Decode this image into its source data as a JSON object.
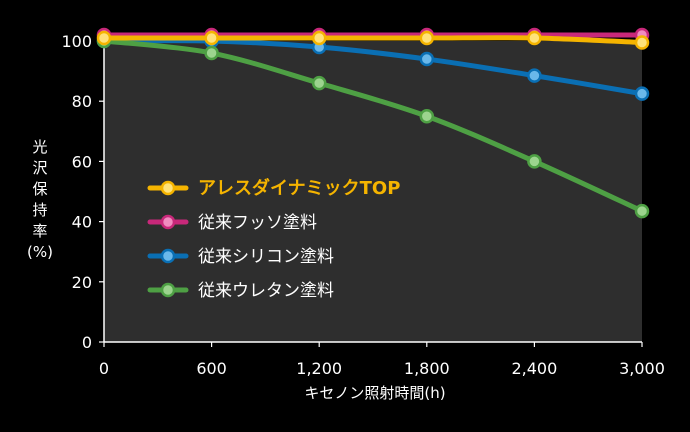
{
  "chart_data": {
    "type": "line",
    "xlabel": "キセノン照射時間(h)",
    "ylabel": [
      "光",
      "沢",
      "保",
      "持",
      "率",
      "(%)"
    ],
    "x": [
      0,
      600,
      1200,
      1800,
      2400,
      3000
    ],
    "x_tick_labels": [
      "0",
      "600",
      "1,200",
      "1,800",
      "2,400",
      "3,000"
    ],
    "xlim": [
      0,
      3000
    ],
    "ylim": [
      0,
      100
    ],
    "y_ticks": [
      0,
      20,
      40,
      60,
      80,
      100
    ],
    "y_tick_labels": [
      "0",
      "20",
      "40",
      "60",
      "80",
      "100"
    ],
    "grid": false,
    "legend_position": "center-left",
    "plot_background": "#2e2e2e",
    "series": [
      {
        "name": "従来フッソ塗料",
        "color": "#c8287a",
        "marker_fill": "#f08cc0",
        "values": [
          102,
          102,
          102,
          102,
          102,
          102
        ]
      },
      {
        "name": "従来シリコン塗料",
        "color": "#0a6fb4",
        "marker_fill": "#6ab8ea",
        "values": [
          100,
          100,
          98,
          94,
          88.5,
          82.5
        ]
      },
      {
        "name": "従来ウレタン塗料",
        "color": "#4ea044",
        "marker_fill": "#9cd48e",
        "values": [
          100,
          96,
          86,
          75,
          60,
          43.5
        ]
      },
      {
        "name": "アレスダイナミックTOP",
        "color": "#f5b400",
        "marker_fill": "#ffe27a",
        "values": [
          101,
          101,
          101,
          101,
          101,
          99.5
        ],
        "highlight": true
      }
    ],
    "legend_order": [
      "アレスダイナミックTOP",
      "従来フッソ塗料",
      "従来シリコン塗料",
      "従来ウレタン塗料"
    ]
  }
}
